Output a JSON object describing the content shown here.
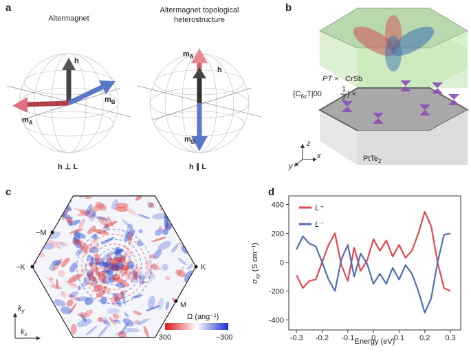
{
  "panels": {
    "a": {
      "letter": "a",
      "left_title": "Altermagnet",
      "right_title": [
        "Altermagnet topological",
        "heterostructure"
      ],
      "left": {
        "h": "h",
        "mB": [
          "m",
          "B"
        ],
        "mA": [
          "m",
          "A"
        ],
        "relation": [
          "h",
          "⊥",
          "L"
        ]
      },
      "right": {
        "mA": [
          "m",
          "A"
        ],
        "h": "h",
        "mB": [
          "m",
          "B"
        ],
        "relation": [
          "h",
          "∥",
          "L"
        ]
      }
    },
    "b": {
      "letter": "b",
      "pt": "PT ×",
      "crsb": "CrSb",
      "sym": {
        "pre": "{C",
        "sub": "6z",
        "mid": "T|00",
        "num": "1",
        "den": "2",
        "post": "} ×"
      },
      "ptte": [
        "PtTe",
        "2"
      ],
      "axes": {
        "z": "z",
        "x": "x",
        "y": "y"
      }
    },
    "c": {
      "letter": "c",
      "points": {
        "mM": "−M",
        "M": "M",
        "mK": "−K",
        "K": "K"
      },
      "ky": [
        "k",
        "y"
      ],
      "kx": [
        "k",
        "x"
      ],
      "colorbar": {
        "label": "Ω (ang⁻¹)",
        "max": "300",
        "min": "−300"
      }
    },
    "d": {
      "letter": "d"
    }
  },
  "chart_data": {
    "type": "line",
    "xlabel": "Energy (eV)",
    "ylabel": {
      "sym": "σ",
      "sub": "xy",
      "unit": " (S cm⁻¹)"
    },
    "x": [
      -0.3,
      -0.275,
      -0.25,
      -0.225,
      -0.2,
      -0.175,
      -0.15,
      -0.125,
      -0.1,
      -0.075,
      -0.05,
      -0.025,
      0,
      0.025,
      0.05,
      0.075,
      0.1,
      0.125,
      0.15,
      0.175,
      0.2,
      0.225,
      0.25,
      0.275,
      0.3
    ],
    "series": [
      {
        "name": "L⁺",
        "color": "#e0484f",
        "values": [
          -90,
          -180,
          -130,
          -120,
          0,
          120,
          200,
          -20,
          -130,
          100,
          -60,
          10,
          160,
          80,
          150,
          40,
          120,
          30,
          80,
          200,
          350,
          250,
          0,
          -180,
          -200
        ]
      },
      {
        "name": "L⁻",
        "color": "#4e6fae",
        "values": [
          90,
          180,
          130,
          110,
          0,
          -120,
          -200,
          20,
          120,
          -100,
          60,
          -10,
          -150,
          -80,
          -150,
          -40,
          -120,
          -20,
          -80,
          -200,
          -350,
          -250,
          0,
          190,
          200
        ]
      }
    ],
    "xlim": [
      -0.33,
      0.34
    ],
    "ylim": [
      -470,
      460
    ],
    "xticks": [
      -0.3,
      -0.2,
      -0.1,
      0,
      0.1,
      0.2,
      0.3
    ],
    "yticks": [
      -400,
      -200,
      0,
      200,
      400
    ],
    "legend": "upper left"
  }
}
